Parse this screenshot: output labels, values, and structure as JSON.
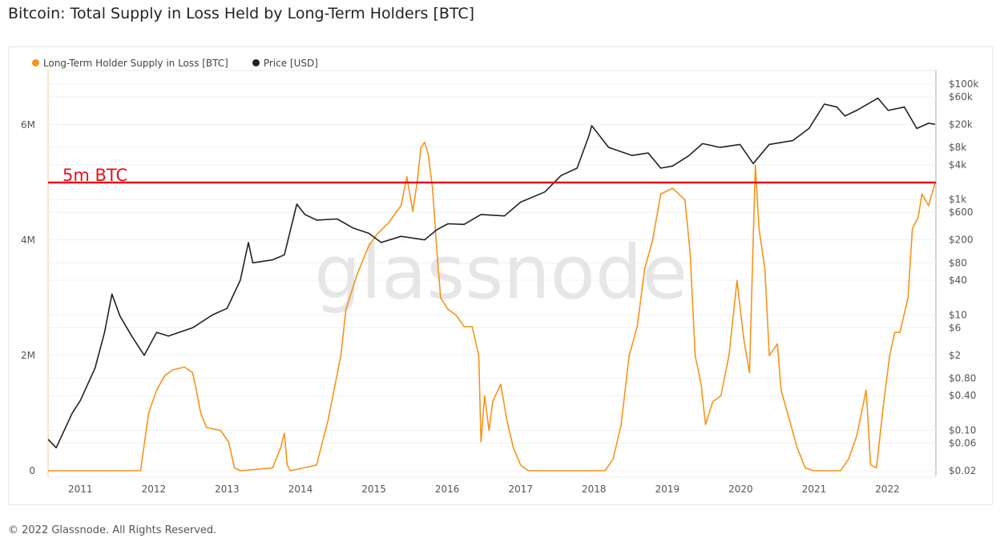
{
  "title": "Bitcoin: Total Supply in Loss Held by Long-Term Holders [BTC]",
  "footer": "© 2022 Glassnode. All Rights Reserved.",
  "watermark": "glassnode",
  "colors": {
    "lth": "#f7931a",
    "price": "#222222",
    "threshold": "#e8101b"
  },
  "chart_data": {
    "type": "line",
    "title": "Bitcoin: Total Supply in Loss Held by Long-Term Holders [BTC]",
    "legend_position": "top-left",
    "grid": true,
    "x_ticks": [
      "2011",
      "2012",
      "2013",
      "2014",
      "2015",
      "2016",
      "2017",
      "2018",
      "2019",
      "2020",
      "2021",
      "2022"
    ],
    "xlim": [
      2010.56,
      2022.66
    ],
    "y_left": {
      "ticks": [
        "0",
        "2M",
        "4M",
        "6M"
      ],
      "ylim": [
        0,
        6950000
      ],
      "scale": "linear"
    },
    "y_right": {
      "ticks": [
        "$0.02",
        "$0.06",
        "$0.10",
        "$0.40",
        "$0.80",
        "$2",
        "$6",
        "$10",
        "$40",
        "$80",
        "$200",
        "$600",
        "$1k",
        "$4k",
        "$8k",
        "$20k",
        "$60k",
        "$100k"
      ],
      "ylim": [
        0.02,
        100000
      ],
      "scale": "log"
    },
    "annotation": {
      "label": "5m BTC",
      "value": 5000000
    },
    "series": [
      {
        "name": "Long-Term Holder Supply in Loss [BTC]",
        "axis": "left",
        "points": [
          [
            2010.56,
            0
          ],
          [
            2011.82,
            0
          ],
          [
            2011.93,
            1000000
          ],
          [
            2012.04,
            1400000
          ],
          [
            2012.15,
            1650000
          ],
          [
            2012.26,
            1750000
          ],
          [
            2012.42,
            1800000
          ],
          [
            2012.53,
            1700000
          ],
          [
            2012.58,
            1400000
          ],
          [
            2012.64,
            1000000
          ],
          [
            2012.72,
            750000
          ],
          [
            2012.91,
            700000
          ],
          [
            2013.02,
            500000
          ],
          [
            2013.1,
            50000
          ],
          [
            2013.18,
            0
          ],
          [
            2013.62,
            50000
          ],
          [
            2013.73,
            400000
          ],
          [
            2013.78,
            650000
          ],
          [
            2013.82,
            100000
          ],
          [
            2013.86,
            0
          ],
          [
            2014.22,
            100000
          ],
          [
            2014.38,
            900000
          ],
          [
            2014.55,
            2000000
          ],
          [
            2014.62,
            2800000
          ],
          [
            2014.77,
            3400000
          ],
          [
            2014.93,
            3900000
          ],
          [
            2015.04,
            4100000
          ],
          [
            2015.2,
            4300000
          ],
          [
            2015.37,
            4600000
          ],
          [
            2015.45,
            5100000
          ],
          [
            2015.53,
            4500000
          ],
          [
            2015.59,
            5000000
          ],
          [
            2015.64,
            5600000
          ],
          [
            2015.69,
            5700000
          ],
          [
            2015.74,
            5500000
          ],
          [
            2015.8,
            4900000
          ],
          [
            2015.86,
            3800000
          ],
          [
            2015.91,
            3000000
          ],
          [
            2016.01,
            2800000
          ],
          [
            2016.12,
            2700000
          ],
          [
            2016.23,
            2500000
          ],
          [
            2016.34,
            2500000
          ],
          [
            2016.43,
            2000000
          ],
          [
            2016.46,
            500000
          ],
          [
            2016.51,
            1300000
          ],
          [
            2016.57,
            700000
          ],
          [
            2016.62,
            1200000
          ],
          [
            2016.73,
            1500000
          ],
          [
            2016.81,
            900000
          ],
          [
            2016.9,
            400000
          ],
          [
            2017.0,
            100000
          ],
          [
            2017.11,
            0
          ],
          [
            2018.15,
            0
          ],
          [
            2018.26,
            200000
          ],
          [
            2018.37,
            800000
          ],
          [
            2018.48,
            2000000
          ],
          [
            2018.59,
            2500000
          ],
          [
            2018.64,
            3000000
          ],
          [
            2018.69,
            3500000
          ],
          [
            2018.8,
            4000000
          ],
          [
            2018.91,
            4800000
          ],
          [
            2019.07,
            4900000
          ],
          [
            2019.24,
            4700000
          ],
          [
            2019.31,
            3800000
          ],
          [
            2019.38,
            2000000
          ],
          [
            2019.46,
            1500000
          ],
          [
            2019.52,
            800000
          ],
          [
            2019.62,
            1200000
          ],
          [
            2019.73,
            1300000
          ],
          [
            2019.84,
            2000000
          ],
          [
            2019.95,
            3300000
          ],
          [
            2020.04,
            2300000
          ],
          [
            2020.12,
            1700000
          ],
          [
            2020.17,
            4000000
          ],
          [
            2020.2,
            5300000
          ],
          [
            2020.25,
            4200000
          ],
          [
            2020.33,
            3500000
          ],
          [
            2020.39,
            2000000
          ],
          [
            2020.5,
            2200000
          ],
          [
            2020.55,
            1400000
          ],
          [
            2020.66,
            900000
          ],
          [
            2020.77,
            400000
          ],
          [
            2020.88,
            50000
          ],
          [
            2020.99,
            0
          ],
          [
            2021.36,
            0
          ],
          [
            2021.47,
            200000
          ],
          [
            2021.58,
            600000
          ],
          [
            2021.71,
            1400000
          ],
          [
            2021.77,
            100000
          ],
          [
            2021.85,
            50000
          ],
          [
            2021.95,
            1200000
          ],
          [
            2022.03,
            2000000
          ],
          [
            2022.1,
            2400000
          ],
          [
            2022.17,
            2400000
          ],
          [
            2022.28,
            3000000
          ],
          [
            2022.34,
            4200000
          ],
          [
            2022.42,
            4400000
          ],
          [
            2022.47,
            4800000
          ],
          [
            2022.56,
            4600000
          ],
          [
            2022.65,
            5000000
          ]
        ]
      },
      {
        "name": "Price [USD]",
        "axis": "right",
        "points": [
          [
            2010.56,
            0.07
          ],
          [
            2010.67,
            0.05
          ],
          [
            2010.89,
            0.2
          ],
          [
            2011.0,
            0.33
          ],
          [
            2011.2,
            1.2
          ],
          [
            2011.33,
            5
          ],
          [
            2011.43,
            23
          ],
          [
            2011.54,
            9.6
          ],
          [
            2011.7,
            4.3
          ],
          [
            2011.87,
            2
          ],
          [
            2012.04,
            5
          ],
          [
            2012.2,
            4.3
          ],
          [
            2012.53,
            6
          ],
          [
            2012.8,
            10
          ],
          [
            2013.0,
            13
          ],
          [
            2013.18,
            40
          ],
          [
            2013.29,
            180
          ],
          [
            2013.35,
            80
          ],
          [
            2013.62,
            90
          ],
          [
            2013.78,
            110
          ],
          [
            2013.95,
            830
          ],
          [
            2014.06,
            550
          ],
          [
            2014.22,
            440
          ],
          [
            2014.5,
            460
          ],
          [
            2014.72,
            320
          ],
          [
            2014.93,
            260
          ],
          [
            2015.1,
            180
          ],
          [
            2015.37,
            230
          ],
          [
            2015.69,
            200
          ],
          [
            2015.86,
            300
          ],
          [
            2016.01,
            380
          ],
          [
            2016.23,
            370
          ],
          [
            2016.46,
            550
          ],
          [
            2016.78,
            520
          ],
          [
            2017.0,
            900
          ],
          [
            2017.33,
            1350
          ],
          [
            2017.55,
            2600
          ],
          [
            2017.77,
            3500
          ],
          [
            2017.93,
            12600
          ],
          [
            2017.97,
            19000
          ],
          [
            2018.2,
            8000
          ],
          [
            2018.52,
            5800
          ],
          [
            2018.74,
            6400
          ],
          [
            2018.91,
            3500
          ],
          [
            2019.07,
            3800
          ],
          [
            2019.29,
            5700
          ],
          [
            2019.48,
            9300
          ],
          [
            2019.72,
            8000
          ],
          [
            2019.99,
            9000
          ],
          [
            2020.17,
            4200
          ],
          [
            2020.39,
            9000
          ],
          [
            2020.71,
            10500
          ],
          [
            2020.93,
            17000
          ],
          [
            2021.14,
            45000
          ],
          [
            2021.31,
            40000
          ],
          [
            2021.42,
            28000
          ],
          [
            2021.58,
            35000
          ],
          [
            2021.87,
            57000
          ],
          [
            2022.01,
            35000
          ],
          [
            2022.23,
            40000
          ],
          [
            2022.4,
            17000
          ],
          [
            2022.56,
            21000
          ],
          [
            2022.65,
            20000
          ]
        ]
      }
    ]
  }
}
